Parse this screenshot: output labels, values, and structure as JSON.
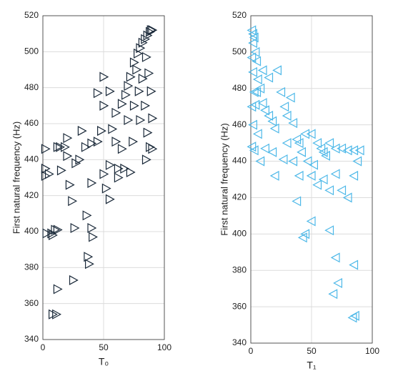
{
  "chart_data": [
    {
      "type": "scatter",
      "xlabel": "T₀",
      "ylabel": "First natural frequency (Hz)",
      "color": "#1b2a3a",
      "marker": "triangle-right",
      "grid": true,
      "xlim": [
        0,
        100
      ],
      "xticks": [
        0,
        50,
        100
      ],
      "ylim": [
        340,
        520
      ],
      "yticks": [
        340,
        360,
        380,
        400,
        420,
        440,
        460,
        480,
        500,
        520
      ],
      "x": [
        2,
        2,
        2,
        3,
        7,
        8,
        10,
        12,
        8,
        11,
        12,
        5,
        12,
        14,
        15,
        18,
        20,
        22,
        24,
        26,
        27,
        30,
        32,
        35,
        36,
        37,
        38,
        40,
        41,
        25,
        40,
        40,
        45,
        48,
        50,
        50,
        52,
        55,
        55,
        57,
        60,
        60,
        62,
        62,
        65,
        67,
        68,
        70,
        70,
        72,
        72,
        74,
        75,
        75,
        77,
        78,
        79,
        80,
        80,
        82,
        82,
        84,
        84,
        85,
        86,
        86,
        87,
        88,
        88,
        89,
        89,
        90,
        90,
        90,
        85,
        50,
        55,
        45,
        20,
        65
      ],
      "values": [
        446,
        435,
        431,
        399,
        399,
        398,
        401,
        401,
        354,
        354,
        368,
        432,
        447,
        447,
        434,
        447,
        442,
        426,
        417,
        402,
        438,
        440,
        456,
        447,
        409,
        386,
        382,
        402,
        397,
        373,
        427,
        449,
        450,
        456,
        470,
        432,
        424,
        418,
        437,
        457,
        466,
        450,
        435,
        430,
        446,
        435,
        476,
        481,
        462,
        486,
        433,
        450,
        470,
        494,
        490,
        499,
        478,
        502,
        462,
        505,
        485,
        507,
        470,
        497,
        509,
        455,
        488,
        511,
        447,
        512,
        478,
        512,
        446,
        463,
        440,
        486,
        478,
        477,
        452,
        471
      ]
    },
    {
      "type": "scatter",
      "xlabel": "T₁",
      "ylabel": "First natural frequency (Hz)",
      "color": "#4db8e8",
      "marker": "triangle-left",
      "grid": true,
      "xlim": [
        0,
        100
      ],
      "xticks": [
        0,
        50,
        100
      ],
      "ylim": [
        340,
        520
      ],
      "yticks": [
        340,
        360,
        380,
        400,
        420,
        440,
        460,
        480,
        500,
        520
      ],
      "x": [
        1,
        2,
        3,
        2,
        4,
        1,
        5,
        2,
        6,
        3,
        8,
        1,
        10,
        2,
        12,
        1,
        3,
        15,
        18,
        4,
        6,
        20,
        22,
        25,
        28,
        30,
        33,
        35,
        38,
        40,
        42,
        45,
        47,
        50,
        52,
        55,
        58,
        60,
        62,
        65,
        70,
        75,
        80,
        85,
        90,
        50,
        55,
        60,
        65,
        70,
        75,
        80,
        85,
        88,
        40,
        30,
        45,
        43,
        50,
        65,
        70,
        72,
        68,
        85,
        84,
        86,
        38,
        35,
        20,
        18,
        12,
        8,
        27,
        5,
        10,
        15
      ],
      "values": [
        512,
        510,
        508,
        505,
        500,
        497,
        495,
        489,
        485,
        478,
        480,
        470,
        472,
        460,
        468,
        448,
        446,
        465,
        462,
        471,
        455,
        458,
        490,
        478,
        470,
        465,
        475,
        461,
        452,
        450,
        445,
        455,
        440,
        455,
        438,
        450,
        447,
        445,
        443,
        450,
        447,
        447,
        446,
        446,
        446,
        432,
        427,
        430,
        424,
        433,
        424,
        420,
        432,
        440,
        432,
        450,
        400,
        398,
        407,
        402,
        387,
        373,
        367,
        383,
        354,
        355,
        418,
        440,
        432,
        445,
        447,
        440,
        441,
        478,
        490,
        486
      ]
    }
  ]
}
